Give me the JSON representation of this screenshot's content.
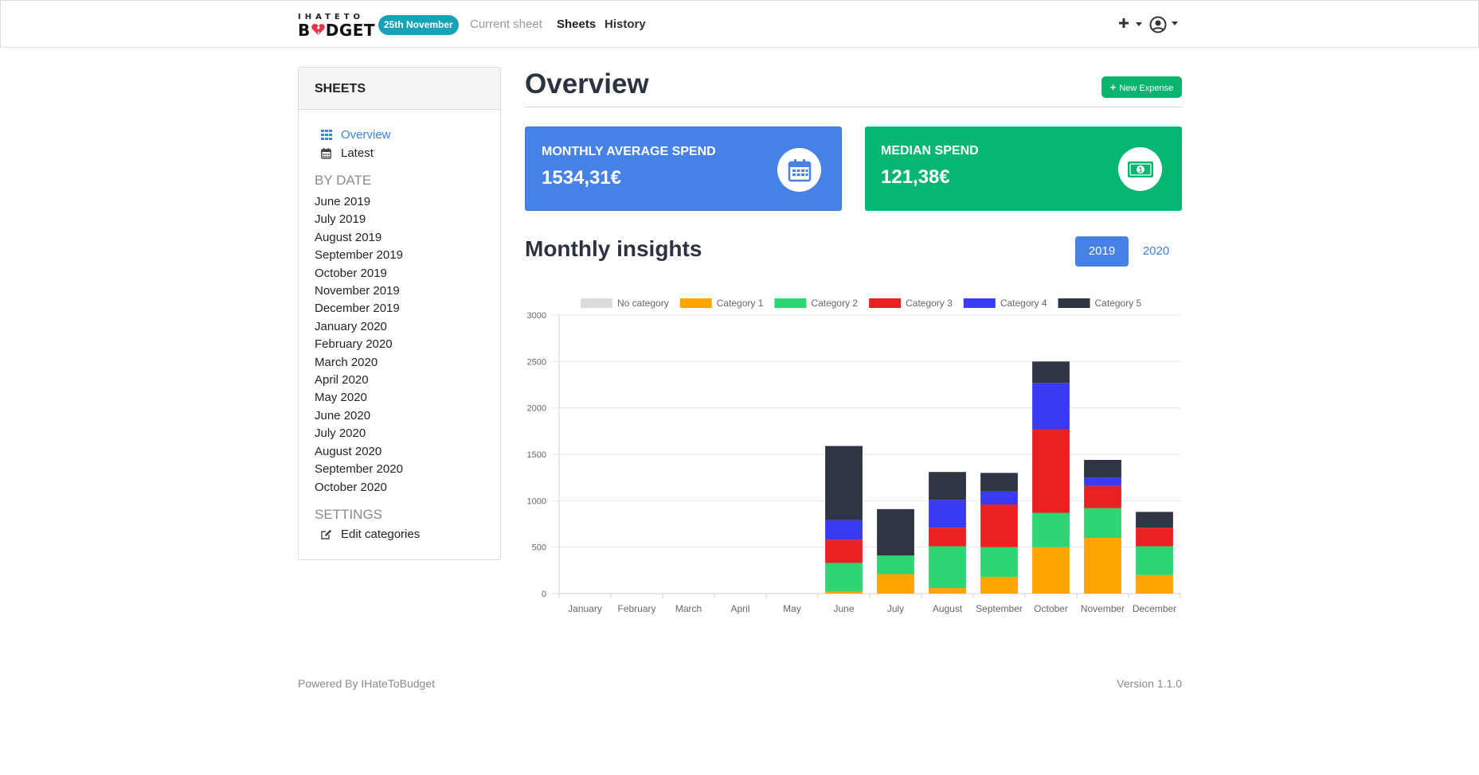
{
  "navbar": {
    "logo_top": "IHATETO",
    "logo_bottom_pre": "B",
    "logo_bottom_post": "DGET",
    "date_badge": "25th November",
    "links": [
      "Current sheet",
      "Sheets",
      "History"
    ],
    "plus_icon": "plus-icon",
    "user_icon": "user-circle-icon"
  },
  "sidebar": {
    "title": "SHEETS",
    "nav": [
      {
        "label": "Overview",
        "icon": "grid-icon"
      },
      {
        "label": "Latest",
        "icon": "calendar-icon"
      }
    ],
    "by_date_title": "BY DATE",
    "dates": [
      "June 2019",
      "July 2019",
      "August 2019",
      "September 2019",
      "October 2019",
      "November 2019",
      "December 2019",
      "January 2020",
      "February 2020",
      "March 2020",
      "April 2020",
      "May 2020",
      "June 2020",
      "July 2020",
      "August 2020",
      "September 2020",
      "October 2020"
    ],
    "settings_title": "SETTINGS",
    "settings_item": "Edit categories"
  },
  "main": {
    "title": "Overview",
    "new_expense": "New Expense",
    "cards": {
      "average_label": "MONTHLY AVERAGE SPEND",
      "average_value": "1534,31€",
      "median_label": "MEDIAN SPEND",
      "median_value": "121,38€"
    },
    "insights_title": "Monthly insights",
    "years": [
      "2019",
      "2020"
    ],
    "active_year": "2019"
  },
  "colors": {
    "accent_blue": "#4682e6",
    "accent_green": "#07b771",
    "badge": "#17a2b8"
  },
  "chart_data": {
    "type": "bar",
    "stacked": true,
    "title": "",
    "xlabel": "",
    "ylabel": "",
    "ylim": [
      0,
      3000
    ],
    "yticks": [
      0,
      500,
      1000,
      1500,
      2000,
      2500,
      3000
    ],
    "legend_position": "top",
    "grid": true,
    "categories": [
      "January",
      "February",
      "March",
      "April",
      "May",
      "June",
      "July",
      "August",
      "September",
      "October",
      "November",
      "December"
    ],
    "series": [
      {
        "name": "No category",
        "color": "#dcdcdc",
        "values": [
          0,
          0,
          0,
          0,
          0,
          0,
          0,
          0,
          0,
          0,
          0,
          0
        ]
      },
      {
        "name": "Category 1",
        "color": "#ffa500",
        "values": [
          0,
          0,
          0,
          0,
          0,
          20,
          210,
          60,
          180,
          500,
          600,
          200
        ]
      },
      {
        "name": "Category 2",
        "color": "#2ed573",
        "values": [
          0,
          0,
          0,
          0,
          0,
          310,
          200,
          450,
          320,
          370,
          320,
          310
        ]
      },
      {
        "name": "Category 3",
        "color": "#eb2020",
        "values": [
          0,
          0,
          0,
          0,
          0,
          250,
          0,
          200,
          460,
          900,
          240,
          200
        ]
      },
      {
        "name": "Category 4",
        "color": "#3a3af5",
        "values": [
          0,
          0,
          0,
          0,
          0,
          210,
          0,
          300,
          140,
          500,
          90,
          0
        ]
      },
      {
        "name": "Category 5",
        "color": "#2f3542",
        "values": [
          0,
          0,
          0,
          0,
          0,
          800,
          500,
          300,
          200,
          230,
          190,
          170
        ]
      }
    ]
  },
  "footer": {
    "left": "Powered By IHateToBudget",
    "right": "Version 1.1.0"
  }
}
